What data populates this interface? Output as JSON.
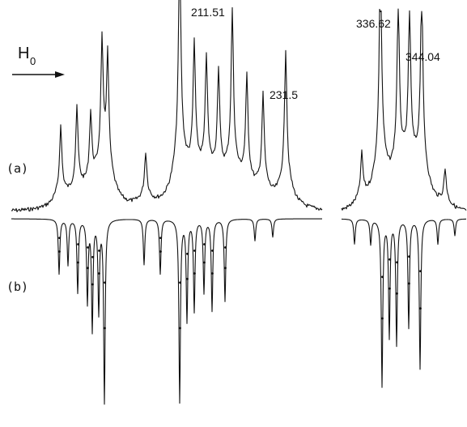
{
  "chart_data": {
    "type": "line",
    "field_label": "H",
    "field_subscript": "0",
    "panels": [
      {
        "label": "(a)"
      },
      {
        "label": "(b)"
      }
    ],
    "peak_labels": [
      "211.51",
      "231.5",
      "336.62",
      "344.04"
    ],
    "series": [
      {
        "segment": "left",
        "experimental_peaks": [
          {
            "x": 75,
            "h": 0.3
          },
          {
            "x": 95,
            "h": 0.35
          },
          {
            "x": 112,
            "h": 0.3
          },
          {
            "x": 126,
            "h": 0.55
          },
          {
            "x": 133,
            "h": 0.5
          },
          {
            "x": 180,
            "h": 0.2
          },
          {
            "x": 222,
            "h": 1.0
          },
          {
            "x": 240,
            "h": 0.55
          },
          {
            "x": 255,
            "h": 0.5
          },
          {
            "x": 270,
            "h": 0.45
          },
          {
            "x": 287,
            "h": 0.7
          },
          {
            "x": 305,
            "h": 0.45
          },
          {
            "x": 325,
            "h": 0.4
          },
          {
            "x": 353,
            "h": 0.6
          }
        ],
        "simulated_peaks": [
          {
            "x": 73,
            "d": 0.3
          },
          {
            "x": 84,
            "d": 0.25
          },
          {
            "x": 96,
            "d": 0.4
          },
          {
            "x": 108,
            "d": 0.45
          },
          {
            "x": 114,
            "d": 0.6
          },
          {
            "x": 122,
            "d": 0.5
          },
          {
            "x": 129,
            "d": 1.0
          },
          {
            "x": 178,
            "d": 0.25
          },
          {
            "x": 198,
            "d": 0.3
          },
          {
            "x": 222,
            "d": 1.0
          },
          {
            "x": 231,
            "d": 0.55
          },
          {
            "x": 240,
            "d": 0.5
          },
          {
            "x": 252,
            "d": 0.4
          },
          {
            "x": 262,
            "d": 0.5
          },
          {
            "x": 278,
            "d": 0.45
          },
          {
            "x": 315,
            "d": 0.12
          },
          {
            "x": 337,
            "d": 0.1
          }
        ]
      },
      {
        "segment": "right",
        "experimental_peaks": [
          {
            "x": 447,
            "h": 0.2
          },
          {
            "x": 470,
            "h": 1.0
          },
          {
            "x": 492,
            "h": 0.75
          },
          {
            "x": 506,
            "h": 0.7
          },
          {
            "x": 521,
            "h": 0.85
          },
          {
            "x": 550,
            "h": 0.15
          }
        ],
        "simulated_peaks": [
          {
            "x": 438,
            "d": 0.15
          },
          {
            "x": 458,
            "d": 0.15
          },
          {
            "x": 472,
            "d": 1.0
          },
          {
            "x": 481,
            "d": 0.7
          },
          {
            "x": 490,
            "d": 0.75
          },
          {
            "x": 505,
            "d": 0.65
          },
          {
            "x": 519,
            "d": 0.9
          },
          {
            "x": 541,
            "d": 0.15
          },
          {
            "x": 562,
            "d": 0.1
          }
        ]
      }
    ]
  }
}
